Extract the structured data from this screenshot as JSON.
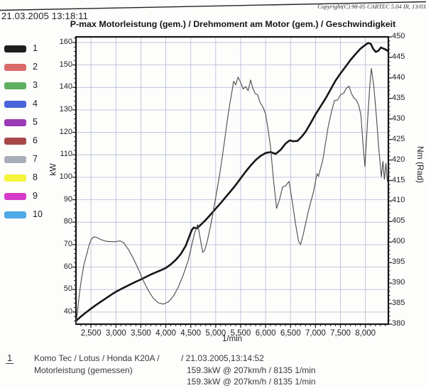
{
  "header": {
    "datetime": "21.03.2005 13:18:11",
    "copyright": "Copyright(C) 98-05 CARTEC 5.04 IR, 13/03/0"
  },
  "title": "P-max Motorleistung (gem.) / Drehmoment am Motor (gem.) / Geschwindigkeit",
  "legend": {
    "items": [
      {
        "number": "1",
        "color": "#1d1d1d"
      },
      {
        "number": "2",
        "color": "#d96a6a"
      },
      {
        "number": "3",
        "color": "#5fae5f"
      },
      {
        "number": "4",
        "color": "#4964d8"
      },
      {
        "number": "5",
        "color": "#9b3bb5"
      },
      {
        "number": "6",
        "color": "#a84848"
      },
      {
        "number": "7",
        "color": "#a9aeb9"
      },
      {
        "number": "8",
        "color": "#f4f43c"
      },
      {
        "number": "9",
        "color": "#d53bc8"
      },
      {
        "number": "10",
        "color": "#4fa8e8"
      }
    ]
  },
  "footnote": {
    "index": "1",
    "vehicle_line1": "Komo Tec / Lotus / Honda K20A /",
    "vehicle_line2": "Motorleistung (gemessen)",
    "run_datetime": "/ 21.03.2005,13:14:52",
    "result_line": "159.3kW @ 207km/h / 8135 1/min",
    "clipped_line": "159.3kW @ 207km/h / 8135 1/min"
  },
  "chart_data": {
    "type": "line",
    "title": "P-max Motorleistung (gem.) / Drehmoment am Motor (gem.) / Geschwindigkeit",
    "grid_color": "#b9c0d8",
    "frame_color": "#141414",
    "x_axis": {
      "label": "1/min",
      "min": 2200,
      "max": 8460,
      "tick_values": [
        2500,
        3000,
        3500,
        4000,
        4500,
        5000,
        5500,
        6000,
        6500,
        7000,
        7500,
        8000
      ],
      "tick_labels": [
        "2,500",
        "3,000",
        "3,500",
        "4,000",
        "4,500",
        "5,000",
        "5,500",
        "6,000",
        "6,500",
        "7,000",
        "7,500",
        "8,000"
      ],
      "minor_tick_step": 100,
      "grid": true
    },
    "y_left": {
      "label": "kW",
      "frame_top_value": 162.5,
      "frame_bottom_value": 34.6,
      "ticks": [
        160,
        150,
        140,
        130,
        120,
        110,
        100,
        90,
        80,
        70,
        60,
        50,
        40
      ],
      "minor_tick_step": 2,
      "grid_step": 10
    },
    "y_right": {
      "label": "Nm (Rad)",
      "frame_top_value": 450,
      "frame_bottom_value": 380,
      "ticks": [
        450,
        445,
        440,
        435,
        430,
        425,
        420,
        415,
        410,
        405,
        400,
        395,
        390,
        385,
        380
      ],
      "minor_tick_step": 1
    },
    "annotations": {
      "peak": "159.3kW @ 207km/h / 8135 1/min"
    },
    "series": [
      {
        "name": "Motorleistung (gemessen)",
        "axis": "left",
        "unit": "kW",
        "color": "#161616",
        "width": 2.6,
        "points": [
          [
            2200,
            36
          ],
          [
            2300,
            38
          ],
          [
            2400,
            39.8
          ],
          [
            2500,
            41.5
          ],
          [
            2600,
            43.1
          ],
          [
            2700,
            44.6
          ],
          [
            2800,
            46.1
          ],
          [
            2900,
            47.6
          ],
          [
            3000,
            49
          ],
          [
            3100,
            50.2
          ],
          [
            3200,
            51.3
          ],
          [
            3300,
            52.4
          ],
          [
            3400,
            53.5
          ],
          [
            3500,
            54.5
          ],
          [
            3600,
            55.6
          ],
          [
            3700,
            56.7
          ],
          [
            3800,
            57.7
          ],
          [
            3900,
            58.6
          ],
          [
            4000,
            59.6
          ],
          [
            4100,
            61.2
          ],
          [
            4200,
            63.2
          ],
          [
            4300,
            65.8
          ],
          [
            4400,
            69.5
          ],
          [
            4460,
            73
          ],
          [
            4520,
            76.5
          ],
          [
            4560,
            77.6
          ],
          [
            4620,
            77.2
          ],
          [
            4700,
            78.8
          ],
          [
            4800,
            81
          ],
          [
            4900,
            83.5
          ],
          [
            5000,
            86
          ],
          [
            5100,
            88.5
          ],
          [
            5200,
            91.2
          ],
          [
            5300,
            93.8
          ],
          [
            5400,
            96.5
          ],
          [
            5500,
            99.5
          ],
          [
            5600,
            102.5
          ],
          [
            5700,
            105.2
          ],
          [
            5800,
            107.6
          ],
          [
            5900,
            109.5
          ],
          [
            6000,
            110.8
          ],
          [
            6100,
            111.2
          ],
          [
            6200,
            110.4
          ],
          [
            6300,
            112.2
          ],
          [
            6400,
            115
          ],
          [
            6480,
            116.4
          ],
          [
            6560,
            116
          ],
          [
            6640,
            116.2
          ],
          [
            6720,
            118
          ],
          [
            6800,
            120.2
          ],
          [
            6900,
            124
          ],
          [
            7000,
            128
          ],
          [
            7100,
            131.5
          ],
          [
            7200,
            135
          ],
          [
            7300,
            139
          ],
          [
            7400,
            143
          ],
          [
            7500,
            146.2
          ],
          [
            7600,
            149.2
          ],
          [
            7700,
            152.2
          ],
          [
            7800,
            154.8
          ],
          [
            7900,
            157.2
          ],
          [
            8000,
            159
          ],
          [
            8060,
            159.8
          ],
          [
            8110,
            159.3
          ],
          [
            8160,
            157
          ],
          [
            8210,
            155.8
          ],
          [
            8260,
            156.3
          ],
          [
            8310,
            157.8
          ],
          [
            8360,
            157.3
          ],
          [
            8410,
            156.8
          ],
          [
            8450,
            156.2
          ]
        ]
      },
      {
        "name": "Drehmoment am Motor (gemessen)",
        "axis": "right",
        "unit": "Nm (Rad)",
        "color": "#4a4a4a",
        "width": 1.1,
        "points": [
          [
            2200,
            380
          ],
          [
            2230,
            383
          ],
          [
            2270,
            387.5
          ],
          [
            2310,
            391
          ],
          [
            2360,
            394.5
          ],
          [
            2410,
            396.8
          ],
          [
            2460,
            399.2
          ],
          [
            2510,
            400.7
          ],
          [
            2560,
            401.3
          ],
          [
            2620,
            401.1
          ],
          [
            2700,
            400.6
          ],
          [
            2800,
            400.2
          ],
          [
            2900,
            400.1
          ],
          [
            3000,
            400.1
          ],
          [
            3080,
            400.3
          ],
          [
            3160,
            399.8
          ],
          [
            3250,
            398.2
          ],
          [
            3350,
            396
          ],
          [
            3450,
            393.4
          ],
          [
            3550,
            390.6
          ],
          [
            3650,
            388.2
          ],
          [
            3750,
            386.3
          ],
          [
            3850,
            385.2
          ],
          [
            3950,
            384.9
          ],
          [
            4050,
            385.4
          ],
          [
            4150,
            386.8
          ],
          [
            4250,
            389
          ],
          [
            4350,
            392
          ],
          [
            4450,
            395.5
          ],
          [
            4520,
            399.3
          ],
          [
            4580,
            402.3
          ],
          [
            4640,
            404.3
          ],
          [
            4690,
            400.9
          ],
          [
            4740,
            397.5
          ],
          [
            4780,
            398
          ],
          [
            4830,
            400.2
          ],
          [
            4880,
            403
          ],
          [
            4930,
            406
          ],
          [
            4980,
            409.5
          ],
          [
            5030,
            413
          ],
          [
            5080,
            416.5
          ],
          [
            5130,
            420.5
          ],
          [
            5180,
            425
          ],
          [
            5230,
            429.5
          ],
          [
            5280,
            433.5
          ],
          [
            5330,
            437
          ],
          [
            5360,
            439.2
          ],
          [
            5400,
            438.3
          ],
          [
            5450,
            440.2
          ],
          [
            5500,
            438.9
          ],
          [
            5550,
            437.3
          ],
          [
            5600,
            437.9
          ],
          [
            5650,
            436.9
          ],
          [
            5700,
            439.5
          ],
          [
            5740,
            437.6
          ],
          [
            5790,
            436.2
          ],
          [
            5840,
            435.9
          ],
          [
            5890,
            434
          ],
          [
            5950,
            432.8
          ],
          [
            6000,
            431.2
          ],
          [
            6050,
            427.5
          ],
          [
            6100,
            423
          ],
          [
            6160,
            415
          ],
          [
            6220,
            408.2
          ],
          [
            6280,
            410.4
          ],
          [
            6340,
            413.4
          ],
          [
            6400,
            413.7
          ],
          [
            6470,
            414.8
          ],
          [
            6540,
            409.5
          ],
          [
            6600,
            404.4
          ],
          [
            6660,
            400.2
          ],
          [
            6700,
            399.4
          ],
          [
            6760,
            402.2
          ],
          [
            6860,
            407.7
          ],
          [
            6960,
            412.3
          ],
          [
            7030,
            416.7
          ],
          [
            7060,
            416
          ],
          [
            7150,
            420.2
          ],
          [
            7250,
            427.9
          ],
          [
            7320,
            431.8
          ],
          [
            7380,
            434.5
          ],
          [
            7440,
            434.6
          ],
          [
            7500,
            435.9
          ],
          [
            7560,
            436.2
          ],
          [
            7620,
            437.5
          ],
          [
            7670,
            438
          ],
          [
            7720,
            436.2
          ],
          [
            7770,
            435.1
          ],
          [
            7820,
            434.6
          ],
          [
            7870,
            433.2
          ],
          [
            7910,
            431
          ],
          [
            7950,
            424
          ],
          [
            7990,
            418.4
          ],
          [
            8040,
            429
          ],
          [
            8090,
            438.5
          ],
          [
            8120,
            442.3
          ],
          [
            8170,
            437.8
          ],
          [
            8220,
            430.7
          ],
          [
            8270,
            422.5
          ],
          [
            8320,
            415.9
          ],
          [
            8350,
            419.7
          ],
          [
            8380,
            415.3
          ],
          [
            8410,
            419.2
          ],
          [
            8440,
            414.8
          ]
        ]
      }
    ]
  }
}
